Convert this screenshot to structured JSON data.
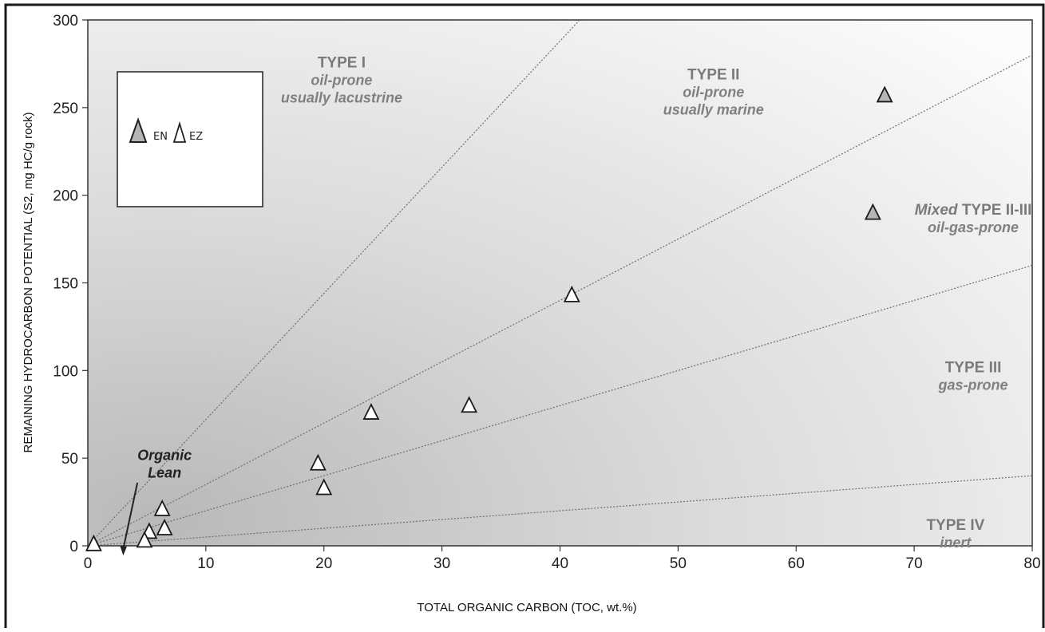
{
  "chart_data": {
    "type": "scatter",
    "title": "",
    "xlabel": "TOTAL ORGANIC CARBON (TOC, wt.%)",
    "ylabel": "REMAINING HYDROCARBON POTENTIAL (S2, mg HC/g rock)",
    "xlim": [
      0,
      80
    ],
    "ylim": [
      0,
      300
    ],
    "x_ticks": [
      "0",
      "10",
      "20",
      "30",
      "40",
      "50",
      "60",
      "70",
      "80"
    ],
    "y_ticks": [
      "0",
      "50",
      "100",
      "150",
      "200",
      "250",
      "300"
    ],
    "grid": false,
    "legend_position": "top-left",
    "legend": [
      {
        "label": "EN",
        "marker": "filled-triangle",
        "color": "#b5b5b5"
      },
      {
        "label": "EZ",
        "marker": "open-triangle",
        "color": "#ffffff"
      }
    ],
    "boundary_lines": [
      {
        "slope": 7.2
      },
      {
        "slope": 3.5
      },
      {
        "slope": 2.0
      },
      {
        "slope": 0.5
      }
    ],
    "regions": [
      {
        "title": "TYPE I",
        "lines": [
          "oil-prone",
          "usually lacustrine"
        ],
        "x": 21.5,
        "y": 273
      },
      {
        "title": "TYPE II",
        "lines": [
          "oil-prone",
          "usually marine"
        ],
        "x": 53,
        "y": 266
      },
      {
        "title": "TYPE II-III",
        "title_prefix": "Mixed",
        "lines": [
          "oil-gas-prone"
        ],
        "x": 75,
        "y": 189
      },
      {
        "title": "TYPE III",
        "lines": [
          "gas-prone"
        ],
        "x": 75,
        "y": 99
      },
      {
        "title": "TYPE IV",
        "lines": [
          "inert"
        ],
        "x": 73.5,
        "y": 9
      }
    ],
    "annotation": {
      "lines": [
        "Organic",
        "Lean"
      ],
      "x": 6.5,
      "y": 49,
      "arrow_from": [
        4.2,
        36
      ],
      "arrow_to": [
        3.0,
        -5.5
      ]
    },
    "series": [
      {
        "name": "EN",
        "marker": "filled-triangle",
        "color": "#b5b5b5",
        "x": [
          67.5,
          66.5
        ],
        "y": [
          257,
          190
        ]
      },
      {
        "name": "EZ",
        "marker": "open-triangle",
        "color": "#ffffff",
        "x": [
          41,
          24,
          32.3,
          19.5,
          20,
          6.3,
          6.5,
          5.2,
          4.8,
          0.5
        ],
        "y": [
          143,
          76,
          80,
          47,
          33,
          21,
          10,
          8,
          3,
          1
        ]
      }
    ]
  }
}
